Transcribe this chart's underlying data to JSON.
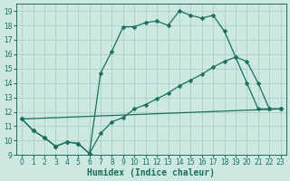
{
  "xlabel": "Humidex (Indice chaleur)",
  "xlim": [
    -0.5,
    23.5
  ],
  "ylim": [
    9,
    19.5
  ],
  "xticks": [
    0,
    1,
    2,
    3,
    4,
    5,
    6,
    7,
    8,
    9,
    10,
    11,
    12,
    13,
    14,
    15,
    16,
    17,
    18,
    19,
    20,
    21,
    22,
    23
  ],
  "yticks": [
    9,
    10,
    11,
    12,
    13,
    14,
    15,
    16,
    17,
    18,
    19
  ],
  "background_color": "#cce8e0",
  "grid_color": "#aad0c8",
  "line_color": "#1a6e60",
  "line1_x": [
    0,
    1,
    2,
    3,
    4,
    5,
    6,
    7,
    8,
    9,
    10,
    11,
    12,
    13,
    14,
    15,
    16,
    17,
    18,
    19,
    20,
    21,
    22,
    23
  ],
  "line1_y": [
    11.5,
    10.7,
    10.2,
    9.6,
    9.9,
    9.8,
    9.1,
    14.7,
    16.2,
    17.9,
    17.9,
    18.2,
    18.3,
    18.0,
    19.0,
    18.7,
    18.5,
    18.7,
    17.6,
    15.8,
    14.0,
    12.2,
    12.2,
    12.2
  ],
  "line1_markers": [
    0,
    1,
    2,
    3,
    4,
    5,
    6,
    7,
    8,
    9,
    10,
    11,
    12,
    13,
    14,
    15,
    16,
    17,
    18,
    19,
    20,
    21,
    22,
    23
  ],
  "line2_x": [
    0,
    1,
    2,
    3,
    4,
    5,
    6,
    7,
    8,
    9,
    10,
    11,
    12,
    13,
    14,
    15,
    16,
    17,
    18,
    19,
    20,
    21,
    22,
    23
  ],
  "line2_y": [
    11.5,
    10.7,
    10.2,
    9.6,
    9.9,
    9.8,
    9.1,
    10.5,
    11.3,
    11.6,
    12.2,
    12.5,
    12.9,
    13.3,
    13.8,
    14.2,
    14.6,
    15.1,
    15.5,
    15.8,
    15.5,
    14.0,
    12.2,
    12.2
  ],
  "line3_x": [
    0,
    23
  ],
  "line3_y": [
    11.5,
    12.2
  ],
  "marker_size": 2.5,
  "linewidth": 0.9,
  "tick_fontsize": 5.5,
  "xlabel_fontsize": 7
}
